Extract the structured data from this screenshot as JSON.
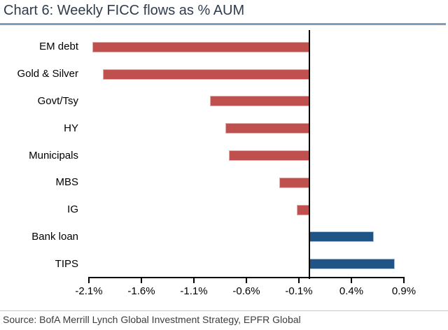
{
  "title": "Chart 6: Weekly FICC flows as % AUM",
  "source": "Source: BofA Merrill Lynch Global Investment Strategy, EPFR Global",
  "colors": {
    "title_text": "#2e3c4b",
    "title_rule": "#7f9db9",
    "axis": "#000000",
    "negative_bar": "#c0504d",
    "positive_bar": "#205486"
  },
  "chart_data": {
    "type": "bar",
    "orientation": "horizontal",
    "title": "Chart 6: Weekly FICC flows as % AUM",
    "categories": [
      "EM debt",
      "Gold & Silver",
      "Govt/Tsy",
      "HY",
      "Municipals",
      "MBS",
      "IG",
      "Bank loan",
      "TIPS"
    ],
    "values": [
      -2.07,
      -1.97,
      -0.95,
      -0.8,
      -0.77,
      -0.29,
      -0.12,
      0.61,
      0.81
    ],
    "unit": "% of AUM",
    "xlim": [
      -2.1,
      0.9
    ],
    "x_ticks": [
      {
        "value": -2.1,
        "label": "-2.1%"
      },
      {
        "value": -1.6,
        "label": "-1.6%"
      },
      {
        "value": -1.1,
        "label": "-1.1%"
      },
      {
        "value": -0.6,
        "label": "-0.6%"
      },
      {
        "value": -0.1,
        "label": "-0.1%"
      },
      {
        "value": 0.4,
        "label": "0.4%"
      },
      {
        "value": 0.9,
        "label": "0.9%"
      }
    ],
    "grid": false,
    "legend": false,
    "negative_color": "#c0504d",
    "positive_color": "#205486"
  }
}
